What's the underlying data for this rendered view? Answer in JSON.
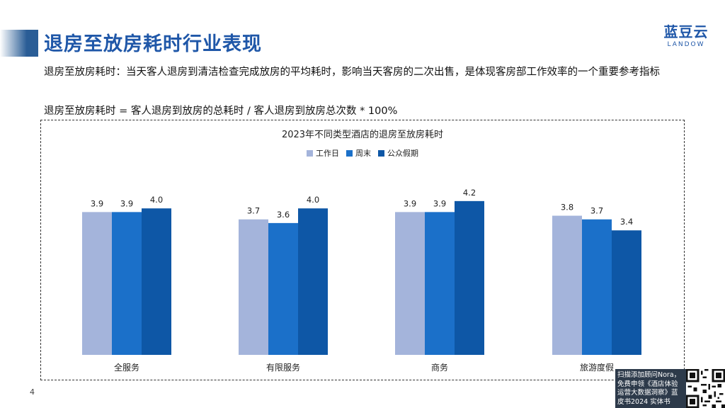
{
  "header": {
    "title": "退房至放房耗时行业表现",
    "logo_cn": "蓝豆云",
    "logo_en": "LANDOW",
    "accent_color": "#2a5d96"
  },
  "description": "退房至放房耗时：当天客人退房到清洁检查完成放房的平均耗时，影响当天客房的二次出售，是体现客房部工作效率的一个重要参考指标",
  "formula": "退房至放房耗时 = 客人退房到放房的总耗时 / 客人退房到放房总次数 * 100%",
  "chart_data": {
    "type": "bar",
    "title": "2023年不同类型酒店的退房至放房耗时",
    "categories": [
      "全服务",
      "有限服务",
      "商务",
      "旅游度假"
    ],
    "series": [
      {
        "name": "工作日",
        "values": [
          3.9,
          3.7,
          3.9,
          3.8
        ],
        "color": "#a4b4db"
      },
      {
        "name": "周末",
        "values": [
          3.9,
          3.6,
          3.9,
          3.7
        ],
        "color": "#1b70c9"
      },
      {
        "name": "公众假期",
        "values": [
          4.0,
          4.0,
          4.2,
          3.4
        ],
        "color": "#0e57a6"
      }
    ],
    "ylim": [
      0,
      4.5
    ],
    "grid": false,
    "legend": "top-center",
    "data_labels": true
  },
  "footer": {
    "page_number": "4",
    "promo_text": "扫描添加顾问Nora，免费申领《酒店体验运营大数据洞察》蓝皮书2024 实体书"
  }
}
